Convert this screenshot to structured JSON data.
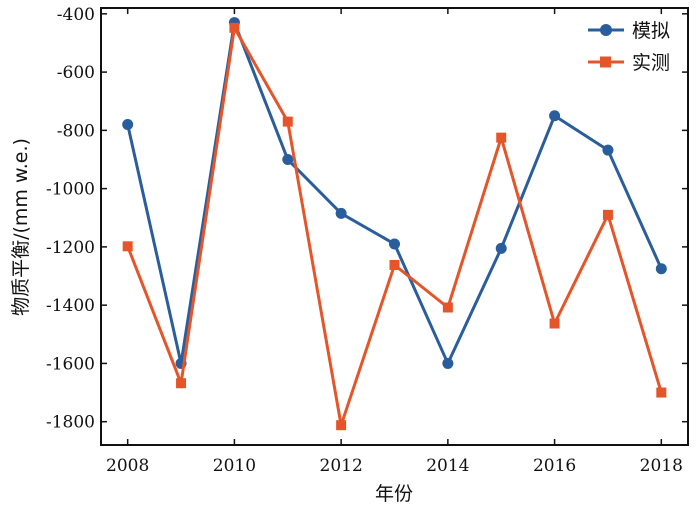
{
  "chart_data": {
    "type": "line",
    "title": "",
    "xlabel": "年份",
    "ylabel": "物质平衡/(mm w.e.)",
    "xlim": [
      2007.5,
      2018.5
    ],
    "ylim": [
      -1880,
      -380
    ],
    "x_ticks": [
      2008,
      2010,
      2012,
      2014,
      2016,
      2018
    ],
    "y_ticks": [
      -400,
      -600,
      -800,
      -1000,
      -1200,
      -1400,
      -1600,
      -1800
    ],
    "x": [
      2008,
      2009,
      2010,
      2011,
      2012,
      2013,
      2014,
      2015,
      2016,
      2017,
      2018
    ],
    "grid": false,
    "legend_position": "top-right",
    "series": [
      {
        "name": "模拟",
        "color": "#2a5d9c",
        "marker": "circle",
        "values": [
          -780,
          -1600,
          -430,
          -900,
          -1085,
          -1190,
          -1600,
          -1205,
          -750,
          -868,
          -1275
        ]
      },
      {
        "name": "实测",
        "color": "#e5552a",
        "marker": "square",
        "values": [
          -1198,
          -1668,
          -448,
          -770,
          -1812,
          -1262,
          -1408,
          -825,
          -1463,
          -1090,
          -1700
        ]
      }
    ]
  }
}
